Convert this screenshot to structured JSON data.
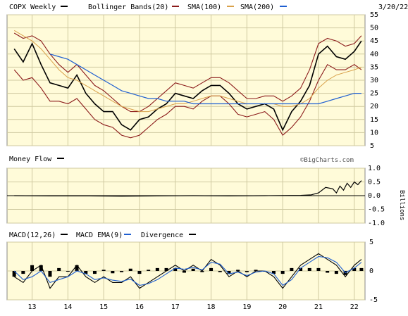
{
  "chart_data": [
    {
      "type": "line",
      "panel": "price",
      "title": "COPX Weekly",
      "date_label": "3/20/22",
      "legend": [
        {
          "label": "COPX Weekly",
          "color": "#000000"
        },
        {
          "label": "Bollinger Bands(20)",
          "color": "#8b1a1a"
        },
        {
          "label": "SMA(100)",
          "color": "#8b1a1a"
        },
        {
          "label": "SMA(200)",
          "color": "#1f5fd1"
        }
      ],
      "x_ticks": [
        "13",
        "14",
        "15",
        "16",
        "17",
        "18",
        "19",
        "20",
        "21",
        "22"
      ],
      "y_ticks": [
        "5",
        "10",
        "15",
        "20",
        "25",
        "30",
        "35",
        "40",
        "45",
        "50",
        "55"
      ],
      "ylim": [
        5,
        55
      ],
      "watermark": "©BigCharts.com",
      "x": [
        2012.5,
        2012.75,
        2013.0,
        2013.25,
        2013.5,
        2013.75,
        2014.0,
        2014.25,
        2014.5,
        2014.75,
        2015.0,
        2015.25,
        2015.5,
        2015.75,
        2016.0,
        2016.25,
        2016.5,
        2016.75,
        2017.0,
        2017.25,
        2017.5,
        2017.75,
        2018.0,
        2018.25,
        2018.5,
        2018.75,
        2019.0,
        2019.25,
        2019.5,
        2019.75,
        2020.0,
        2020.25,
        2020.5,
        2020.75,
        2021.0,
        2021.25,
        2021.5,
        2021.75,
        2022.0,
        2022.2
      ],
      "series": [
        {
          "name": "COPX Weekly",
          "color": "#000000",
          "values": [
            42,
            37,
            44,
            36,
            29,
            28,
            27,
            32,
            25,
            21,
            18,
            18,
            13,
            11,
            15,
            16,
            19,
            21,
            25,
            24,
            23,
            26,
            28,
            28,
            25,
            21,
            19,
            20,
            21,
            19,
            11,
            18,
            22,
            28,
            40,
            43,
            39,
            38,
            41,
            45
          ]
        },
        {
          "name": "Bollinger Upper",
          "color": "#8b1a1a",
          "values": [
            48,
            46,
            47,
            45,
            40,
            36,
            33,
            36,
            32,
            28,
            26,
            23,
            20,
            18,
            18,
            20,
            23,
            26,
            29,
            28,
            27,
            29,
            31,
            31,
            29,
            26,
            23,
            23,
            24,
            24,
            22,
            24,
            27,
            34,
            44,
            46,
            45,
            43,
            44,
            47
          ]
        },
        {
          "name": "Bollinger Lower",
          "color": "#8b1a1a",
          "values": [
            34,
            30,
            31,
            27,
            22,
            22,
            21,
            23,
            19,
            15,
            13,
            12,
            9,
            8,
            9,
            12,
            15,
            17,
            20,
            20,
            19,
            22,
            24,
            24,
            21,
            17,
            16,
            17,
            18,
            15,
            9,
            12,
            16,
            22,
            30,
            36,
            34,
            34,
            36,
            34
          ]
        },
        {
          "name": "SMA(100)",
          "color": "#d9a14a",
          "values": [
            49,
            47,
            45,
            42,
            38,
            34,
            31,
            30,
            28,
            26,
            24,
            22,
            20,
            19,
            18,
            18,
            19,
            20,
            21,
            21,
            22,
            23,
            24,
            24,
            23,
            22,
            21,
            21,
            21,
            21,
            20,
            20,
            21,
            23,
            27,
            30,
            32,
            33,
            34,
            35
          ]
        },
        {
          "name": "SMA(200)",
          "color": "#1f5fd1",
          "values": [
            null,
            null,
            null,
            null,
            40,
            39,
            38,
            36,
            34,
            32,
            30,
            28,
            26,
            25,
            24,
            23,
            23,
            22,
            22,
            22,
            21,
            21,
            21,
            21,
            21,
            21,
            21,
            21,
            21,
            21,
            21,
            21,
            21,
            21,
            21,
            22,
            23,
            24,
            25,
            25
          ]
        }
      ]
    },
    {
      "type": "area",
      "panel": "money_flow",
      "title": "Money Flow",
      "legend": [
        {
          "label": "Money Flow",
          "color": "#000000"
        }
      ],
      "y_ticks": [
        "1.0",
        "0.5",
        "0.0",
        "-0.5",
        "-1.0"
      ],
      "y_unit": "Billions",
      "ylim": [
        -1.0,
        1.0
      ],
      "x": [
        2012.5,
        2013.5,
        2014.5,
        2015.5,
        2016.5,
        2017.5,
        2018.5,
        2019.5,
        2020.5,
        2020.8,
        2021.0,
        2021.2,
        2021.4,
        2021.5,
        2021.6,
        2021.7,
        2021.8,
        2021.9,
        2022.0,
        2022.1,
        2022.2
      ],
      "values": [
        0.0,
        -0.01,
        -0.01,
        -0.02,
        -0.01,
        0.0,
        -0.01,
        0.0,
        0.01,
        0.03,
        0.1,
        0.3,
        0.25,
        0.1,
        0.35,
        0.2,
        0.45,
        0.3,
        0.5,
        0.4,
        0.55
      ]
    },
    {
      "type": "line",
      "panel": "macd",
      "legend": [
        {
          "label": "MACD(12,26)",
          "color": "#000000"
        },
        {
          "label": "MACD EMA(9)",
          "color": "#1f5fd1"
        },
        {
          "label": "Divergence",
          "color": "#8b1a1a"
        }
      ],
      "y_ticks": [
        "5",
        "0",
        "-5"
      ],
      "ylim": [
        -5,
        5
      ],
      "x": [
        2012.5,
        2012.75,
        2013.0,
        2013.25,
        2013.5,
        2013.75,
        2014.0,
        2014.25,
        2014.5,
        2014.75,
        2015.0,
        2015.25,
        2015.5,
        2015.75,
        2016.0,
        2016.25,
        2016.5,
        2016.75,
        2017.0,
        2017.25,
        2017.5,
        2017.75,
        2018.0,
        2018.25,
        2018.5,
        2018.75,
        2019.0,
        2019.25,
        2019.5,
        2019.75,
        2020.0,
        2020.25,
        2020.5,
        2020.75,
        2021.0,
        2021.25,
        2021.5,
        2021.75,
        2022.0,
        2022.2
      ],
      "series": [
        {
          "name": "MACD(12,26)",
          "color": "#000000",
          "values": [
            -1,
            -2,
            0,
            1,
            -3,
            -1,
            -1,
            1,
            -1,
            -2,
            -1,
            -2,
            -2,
            -1,
            -3,
            -2,
            -1,
            0,
            1,
            0,
            1,
            0,
            2,
            1,
            -1,
            0,
            -1,
            0,
            0,
            -1,
            -3,
            -1,
            1,
            2,
            3,
            2,
            1,
            -1,
            1,
            2
          ]
        },
        {
          "name": "MACD EMA(9)",
          "color": "#1f5fd1",
          "values": [
            0,
            -1.5,
            -1,
            0,
            -2,
            -1.5,
            -1,
            0,
            -0.5,
            -1.5,
            -1.2,
            -1.6,
            -1.8,
            -1.4,
            -2.5,
            -2.2,
            -1.5,
            -0.5,
            0.5,
            0.3,
            0.6,
            0.2,
            1.5,
            1.2,
            -0.5,
            -0.2,
            -0.8,
            -0.2,
            0,
            -0.5,
            -2.5,
            -1.5,
            0.5,
            1.5,
            2.5,
            2.3,
            1.5,
            -0.3,
            0.5,
            1.5
          ]
        },
        {
          "name": "Divergence",
          "color": "#000000",
          "values": [
            -1,
            -0.5,
            1,
            1,
            -1,
            0.5,
            0,
            1,
            -0.5,
            -0.5,
            0.2,
            -0.4,
            -0.2,
            0.4,
            -0.5,
            0.2,
            0.5,
            0.5,
            0.5,
            -0.3,
            0.4,
            -0.2,
            0.5,
            -0.2,
            -0.5,
            0.2,
            -0.2,
            0.2,
            0,
            -0.5,
            -0.5,
            0.5,
            0.5,
            0.5,
            0.5,
            -0.3,
            -0.5,
            -0.7,
            0.5,
            0.5
          ]
        }
      ]
    }
  ]
}
